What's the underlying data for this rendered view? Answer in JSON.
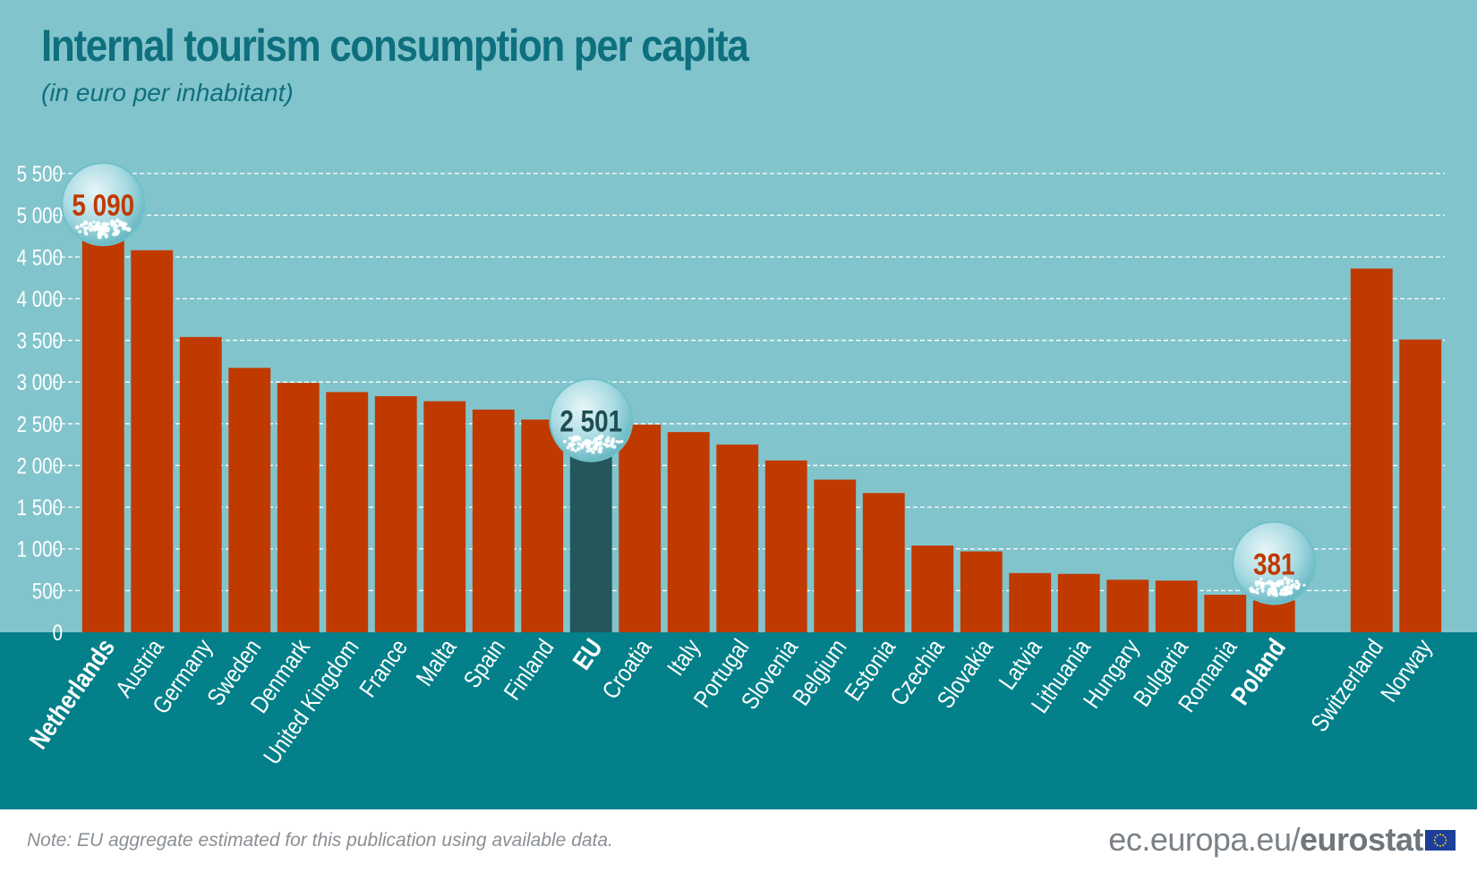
{
  "title": "Internal tourism consumption per capita",
  "subtitle": "(in euro per inhabitant)",
  "note": "Note: EU aggregate estimated for this publication using available data.",
  "brand": {
    "site": "ec.europa.eu/",
    "name": "eurostat"
  },
  "colors": {
    "bar": "#c03a00",
    "eu_bar": "#23575c",
    "plot_bg": "#82c4cc",
    "label_band": "#03808a",
    "grid": "#ffffff",
    "highlight_value": "#c03a00",
    "eu_value": "#1f4d52"
  },
  "chart_data": {
    "type": "bar",
    "title": "Internal tourism consumption per capita",
    "subtitle": "(in euro per inhabitant)",
    "xlabel": "",
    "ylabel": "",
    "ylim": [
      0,
      5500
    ],
    "yticks": [
      0,
      500,
      1000,
      1500,
      2000,
      2500,
      3000,
      3500,
      4000,
      4500,
      5000,
      5500
    ],
    "ytick_labels": [
      "0",
      "500",
      "1 000",
      "1 500",
      "2 000",
      "2 500",
      "3 000",
      "3 500",
      "4 000",
      "4 500",
      "5 000",
      "5 500"
    ],
    "grid": true,
    "categories": [
      "Netherlands",
      "Austria",
      "Germany",
      "Sweden",
      "Denmark",
      "United Kingdom",
      "France",
      "Malta",
      "Spain",
      "Finland",
      "EU",
      "Croatia",
      "Italy",
      "Portugal",
      "Slovenia",
      "Belgium",
      "Estonia",
      "Czechia",
      "Slovakia",
      "Latvia",
      "Lithuania",
      "Hungary",
      "Bulgaria",
      "Romania",
      "Poland",
      "",
      "Switzerland",
      "Norway"
    ],
    "values": [
      5090,
      4580,
      3540,
      3170,
      2990,
      2880,
      2830,
      2770,
      2670,
      2550,
      2501,
      2490,
      2400,
      2250,
      2060,
      1830,
      1670,
      1040,
      970,
      710,
      700,
      630,
      620,
      450,
      381,
      null,
      4360,
      3510
    ],
    "bold_categories": [
      "Netherlands",
      "EU",
      "Poland"
    ],
    "highlighted": [
      {
        "category": "Netherlands",
        "label": "5 090"
      },
      {
        "category": "EU",
        "label": "2 501"
      },
      {
        "category": "Poland",
        "label": "381"
      }
    ]
  }
}
